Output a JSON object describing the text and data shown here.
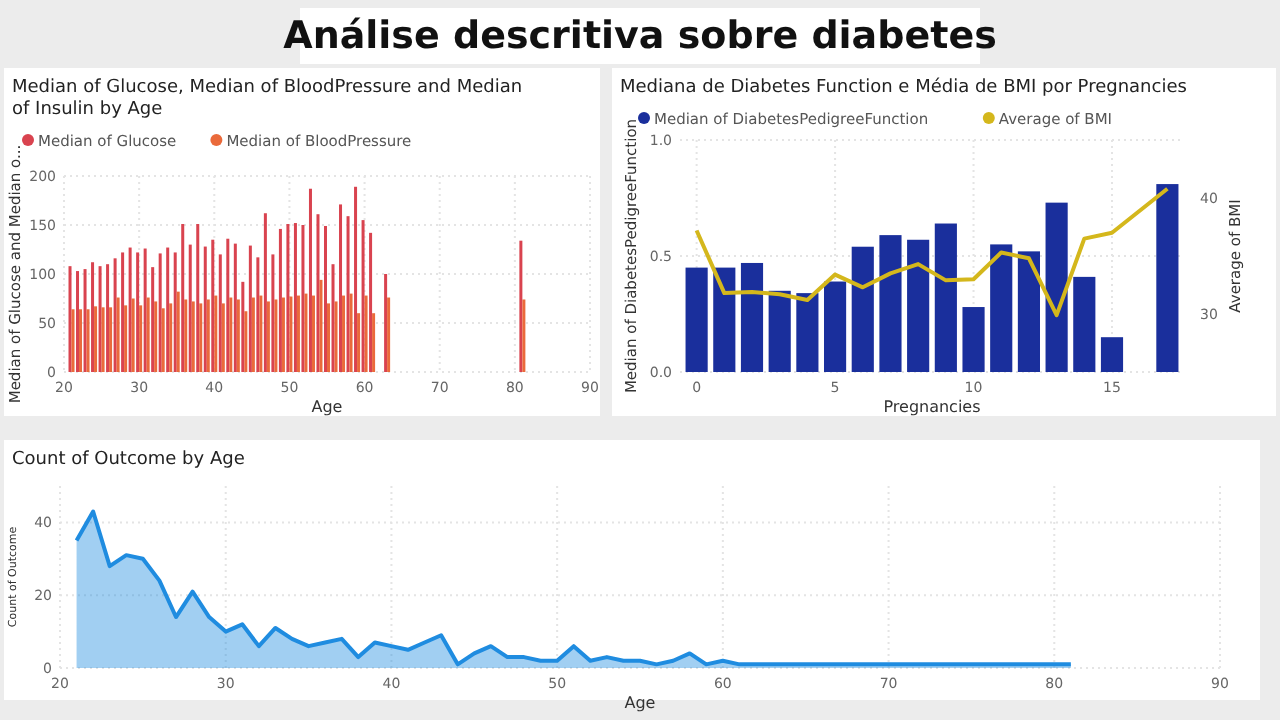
{
  "chart_data": [
    {
      "type": "other",
      "title": "Análise descritiva sobre diabetes"
    },
    {
      "type": "bar",
      "title": "Median of Glucose, Median of BloodPressure and Median of Insulin by Age",
      "xlabel": "Age",
      "ylabel": "Median of Glucose and Median o...",
      "x": [
        21,
        22,
        23,
        24,
        25,
        26,
        27,
        28,
        29,
        30,
        31,
        32,
        33,
        34,
        35,
        36,
        37,
        38,
        39,
        40,
        41,
        42,
        43,
        44,
        45,
        46,
        47,
        48,
        49,
        50,
        51,
        52,
        53,
        54,
        55,
        56,
        57,
        58,
        59,
        60,
        61,
        63,
        81
      ],
      "series": [
        {
          "name": "Median of Glucose",
          "color": "#d9434f",
          "values": [
            108,
            103,
            105,
            112,
            108,
            110,
            116,
            122,
            127,
            122,
            126,
            107,
            121,
            127,
            122,
            151,
            130,
            151,
            128,
            135,
            120,
            136,
            131,
            92,
            129,
            117,
            162,
            120,
            146,
            151,
            152,
            150,
            187,
            161,
            149,
            110,
            171,
            159,
            189,
            155,
            142,
            100,
            134
          ]
        },
        {
          "name": "Median of BloodPressure",
          "color": "#ea6a3b",
          "values": [
            64,
            64,
            64,
            67,
            66,
            66,
            76,
            68,
            75,
            68,
            76,
            72,
            65,
            70,
            82,
            74,
            72,
            70,
            74,
            78,
            70,
            76,
            74,
            62,
            76,
            78,
            72,
            74,
            76,
            77,
            78,
            80,
            78,
            94,
            70,
            72,
            78,
            80,
            60,
            78,
            60,
            76,
            74
          ]
        }
      ],
      "xlim": [
        20,
        90
      ],
      "xticks": [
        20,
        30,
        40,
        50,
        60,
        70,
        80,
        90
      ],
      "ylim": [
        0,
        200
      ],
      "yticks": [
        0,
        50,
        100,
        150,
        200
      ],
      "grid": true,
      "legend": "top left"
    },
    {
      "type": "bar",
      "title": "Mediana de Diabetes Function e Média de BMI por Pregnancies",
      "xlabel": "Pregnancies",
      "ylabel": "Median of DiabetesPedigreeFunction",
      "y2label": "Average of BMI",
      "x": [
        0,
        1,
        2,
        3,
        4,
        5,
        6,
        7,
        8,
        9,
        10,
        11,
        12,
        13,
        14,
        15,
        17
      ],
      "series": [
        {
          "name": "Median of DiabetesPedigreeFunction",
          "color": "#1a2f9c",
          "values": [
            0.45,
            0.45,
            0.47,
            0.35,
            0.34,
            0.39,
            0.54,
            0.59,
            0.57,
            0.64,
            0.28,
            0.55,
            0.52,
            0.73,
            0.41,
            0.15,
            0.81
          ]
        },
        {
          "name": "Average of BMI",
          "type": "line",
          "axis": "y2",
          "color": "#d4b71c",
          "values": [
            37.2,
            31.8,
            31.9,
            31.7,
            31.2,
            33.4,
            32.3,
            33.5,
            34.3,
            32.9,
            33.0,
            35.3,
            34.8,
            29.9,
            36.5,
            37.0,
            40.8
          ]
        }
      ],
      "xlim": [
        -0.6,
        17.6
      ],
      "xticks": [
        0,
        5,
        10,
        15
      ],
      "ylim": [
        0,
        1
      ],
      "yticks": [
        {
          "value": 0,
          "label": "0.0"
        },
        {
          "value": 0.5,
          "label": "0.5"
        },
        {
          "value": 1,
          "label": "1.0"
        }
      ],
      "y2lim": [
        25,
        45
      ],
      "y2ticks": [
        30,
        40
      ],
      "grid": true,
      "legend": "top left"
    },
    {
      "type": "area",
      "title": "Count of Outcome by Age",
      "xlabel": "Age",
      "ylabel": "Count of Outcome",
      "x": [
        21,
        22,
        23,
        24,
        25,
        26,
        27,
        28,
        29,
        30,
        31,
        32,
        33,
        34,
        35,
        36,
        37,
        38,
        39,
        40,
        41,
        42,
        43,
        44,
        45,
        46,
        47,
        48,
        49,
        50,
        51,
        52,
        53,
        54,
        55,
        56,
        57,
        58,
        59,
        60,
        61,
        62,
        63,
        64,
        65,
        66,
        67,
        68,
        69,
        70,
        72,
        81
      ],
      "series": [
        {
          "color": "#1f8ce0",
          "values": [
            35,
            43,
            28,
            31,
            30,
            24,
            14,
            21,
            14,
            10,
            12,
            6,
            11,
            8,
            6,
            7,
            8,
            3,
            7,
            6,
            5,
            7,
            9,
            1,
            4,
            6,
            3,
            3,
            2,
            2,
            6,
            2,
            3,
            2,
            2,
            1,
            2,
            4,
            1,
            2,
            1,
            1,
            1,
            1,
            1,
            1,
            1,
            1,
            1,
            1,
            1,
            1
          ]
        }
      ],
      "xlim": [
        20,
        90
      ],
      "xticks": [
        20,
        30,
        40,
        50,
        60,
        70,
        80,
        90
      ],
      "ylim": [
        0,
        50
      ],
      "yticks": [
        0,
        20,
        40
      ],
      "grid": true
    }
  ]
}
